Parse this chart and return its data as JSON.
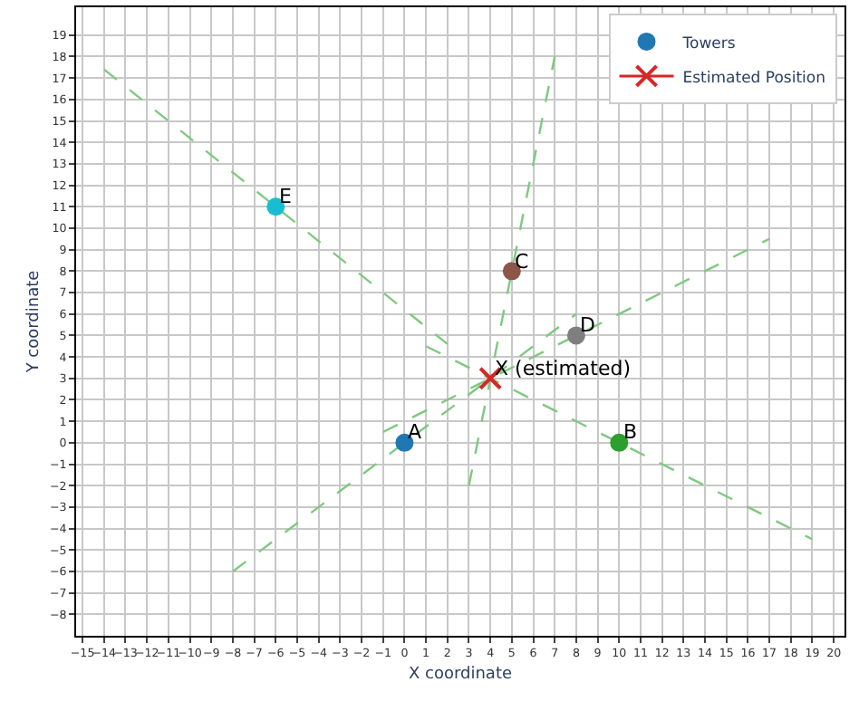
{
  "chart_data": {
    "type": "scatter",
    "xlabel": "X coordinate",
    "ylabel": "Y coordinate",
    "grid": true,
    "legend": "top right",
    "xlim": [
      -15.3,
      20.5
    ],
    "ylim": [
      -9,
      20.3
    ],
    "xticks": [
      {
        "value": -15,
        "label": "−15"
      },
      {
        "value": -14,
        "label": "−14"
      },
      {
        "value": -13,
        "label": "−13"
      },
      {
        "value": -12,
        "label": "−12"
      },
      {
        "value": -11,
        "label": "−11"
      },
      {
        "value": -10,
        "label": "−10"
      },
      {
        "value": -9,
        "label": "−9"
      },
      {
        "value": -8,
        "label": "−8"
      },
      {
        "value": -7,
        "label": "−7"
      },
      {
        "value": -6,
        "label": "−6"
      },
      {
        "value": -5,
        "label": "−5"
      },
      {
        "value": -4,
        "label": "−4"
      },
      {
        "value": -3,
        "label": "−3"
      },
      {
        "value": -2,
        "label": "−2"
      },
      {
        "value": -1,
        "label": "−1"
      },
      0,
      1,
      2,
      3,
      4,
      5,
      6,
      7,
      8,
      9,
      10,
      11,
      12,
      13,
      14,
      15,
      16,
      17,
      18,
      19,
      20
    ],
    "yticks": [
      {
        "value": -8,
        "label": "−8"
      },
      {
        "value": -7,
        "label": "−7"
      },
      {
        "value": -6,
        "label": "−6"
      },
      {
        "value": -5,
        "label": "−5"
      },
      {
        "value": -4,
        "label": "−4"
      },
      {
        "value": -3,
        "label": "−3"
      },
      {
        "value": -2,
        "label": "−2"
      },
      {
        "value": -1,
        "label": "−1"
      },
      0,
      1,
      2,
      3,
      4,
      5,
      6,
      7,
      8,
      9,
      10,
      11,
      12,
      13,
      14,
      15,
      16,
      17,
      18,
      19
    ],
    "series": [
      {
        "type": "line",
        "line_style": "dashed",
        "marker": "none",
        "color": "#7fc97f",
        "x": [
          -8,
          8
        ],
        "values": [
          -6,
          6
        ]
      },
      {
        "type": "line",
        "line_style": "dashed",
        "marker": "none",
        "color": "#7fc97f",
        "x": [
          1,
          19
        ],
        "values": [
          4.5,
          -4.5
        ]
      },
      {
        "type": "line",
        "line_style": "dashed",
        "marker": "none",
        "color": "#7fc97f",
        "x": [
          3,
          7
        ],
        "values": [
          -2,
          18
        ]
      },
      {
        "type": "line",
        "line_style": "dashed",
        "marker": "none",
        "color": "#7fc97f",
        "x": [
          -1,
          17
        ],
        "values": [
          0.5,
          9.5
        ]
      },
      {
        "type": "line",
        "line_style": "dashed",
        "marker": "none",
        "color": "#7fc97f",
        "x": [
          -14,
          2
        ],
        "values": [
          17.4,
          4.6
        ]
      },
      {
        "name": "Towers",
        "marker": "circle",
        "color": "#1f77b4",
        "colors": [
          "#1f77b4",
          "#2ca02c",
          "#8c564b",
          "#7f7f7f",
          "#17becf"
        ],
        "x": [
          0,
          10,
          5,
          8,
          -6
        ],
        "values": [
          0,
          0,
          8,
          5,
          11
        ]
      },
      {
        "name": "Estimated Position",
        "marker": "cross",
        "line_style": "solid",
        "color": "#d62728",
        "x": [
          4
        ],
        "values": [
          3
        ]
      }
    ],
    "annotations": [
      {
        "text": "A",
        "x": 0,
        "y": 0
      },
      {
        "text": "B",
        "x": 10,
        "y": 0
      },
      {
        "text": "C",
        "x": 5,
        "y": 8
      },
      {
        "text": "D",
        "x": 8,
        "y": 5
      },
      {
        "text": "E",
        "x": -6,
        "y": 11
      },
      {
        "text": "X (estimated)",
        "x": 4,
        "y": 3
      }
    ]
  }
}
